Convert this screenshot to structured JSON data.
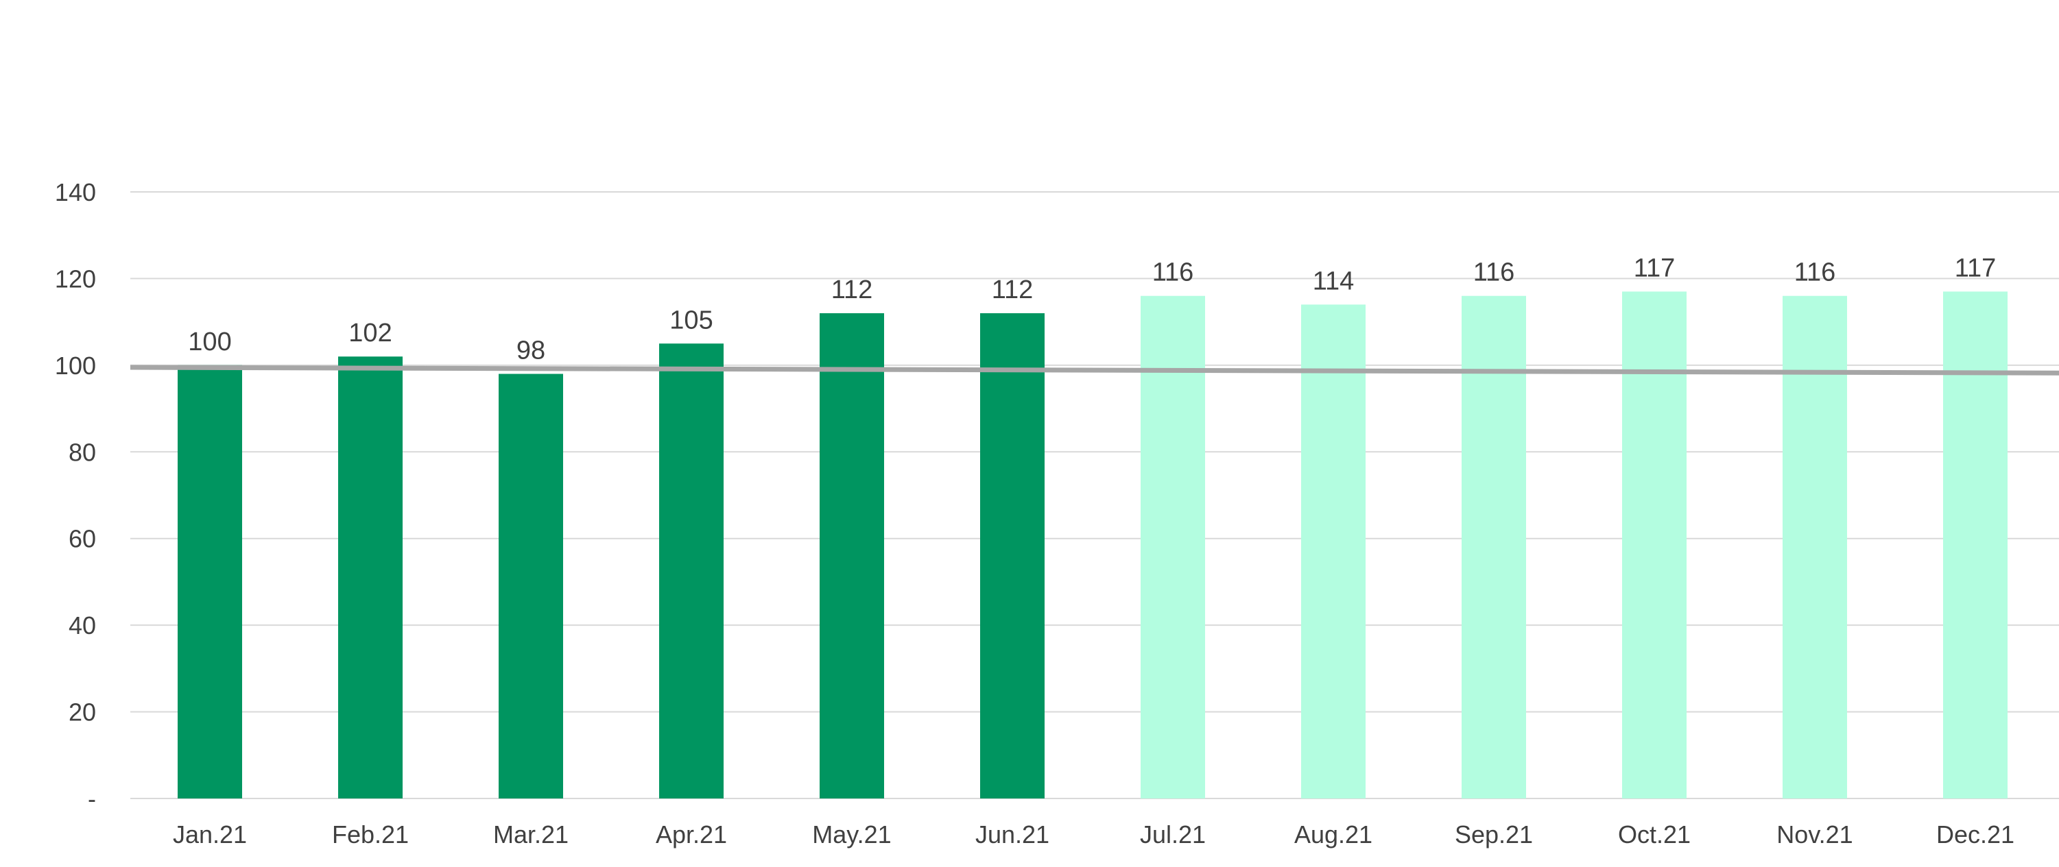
{
  "chart_data": {
    "type": "bar",
    "title": "",
    "xlabel": "",
    "ylabel": "",
    "categories": [
      "Jan.21",
      "Feb.21",
      "Mar.21",
      "Apr.21",
      "May.21",
      "Jun.21",
      "Jul.21",
      "Aug.21",
      "Sep.21",
      "Oct.21",
      "Nov.21",
      "Dec.21"
    ],
    "values": [
      100,
      102,
      98,
      105,
      112,
      112,
      116,
      114,
      116,
      117,
      116,
      117
    ],
    "data_labels": [
      "100",
      "102",
      "98",
      "105",
      "112",
      "112",
      "116",
      "114",
      "116",
      "117",
      "116",
      "117"
    ],
    "bar_colors": [
      "#009560",
      "#009560",
      "#009560",
      "#009560",
      "#009560",
      "#009560",
      "#b3fde0",
      "#b3fde0",
      "#b3fde0",
      "#b3fde0",
      "#b3fde0",
      "#b3fde0"
    ],
    "ylim": [
      0,
      140
    ],
    "yticks": [
      0,
      20,
      40,
      60,
      80,
      100,
      120,
      140
    ],
    "ytick_labels": [
      "-",
      "20",
      "40",
      "60",
      "80",
      "100",
      "120",
      "140"
    ],
    "reference_line": {
      "start_value": 99.5,
      "end_value": 98.2,
      "color": "#a6a6a6"
    },
    "grid": true,
    "legend": "none"
  }
}
